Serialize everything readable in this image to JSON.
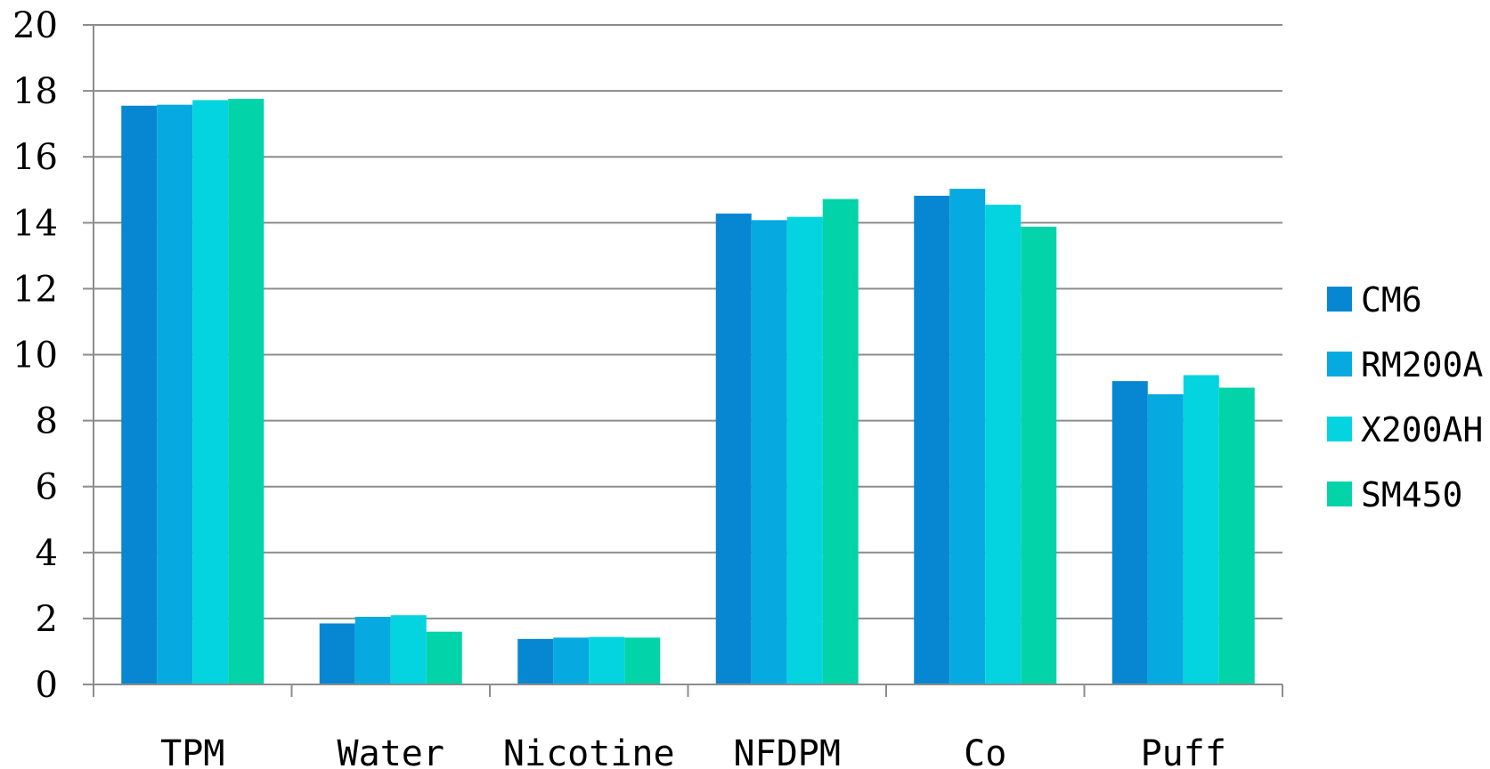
{
  "chart_data": {
    "type": "bar",
    "categories": [
      "TPM",
      "Water",
      "Nicotine",
      "NFDPM",
      "Co",
      "Puff"
    ],
    "series": [
      {
        "name": "CM6",
        "color": "#0787D1",
        "values": [
          17.55,
          1.85,
          1.38,
          14.28,
          14.82,
          9.2
        ]
      },
      {
        "name": "RM200A",
        "color": "#06A9E0",
        "values": [
          17.58,
          2.05,
          1.42,
          14.08,
          15.03,
          8.8
        ]
      },
      {
        "name": "X200AH",
        "color": "#03D4E0",
        "values": [
          17.72,
          2.1,
          1.44,
          14.18,
          14.55,
          9.38
        ]
      },
      {
        "name": "SM450",
        "color": "#03D3A8",
        "values": [
          17.76,
          1.6,
          1.42,
          14.72,
          13.88,
          9.0
        ]
      }
    ],
    "ylim": [
      0,
      20
    ],
    "yticks": [
      "0",
      "2",
      "4",
      "6",
      "8",
      "10",
      "12",
      "14",
      "16",
      "18",
      "20"
    ],
    "grid": true,
    "legend_position": "right",
    "title": "",
    "xlabel": "",
    "ylabel": ""
  }
}
